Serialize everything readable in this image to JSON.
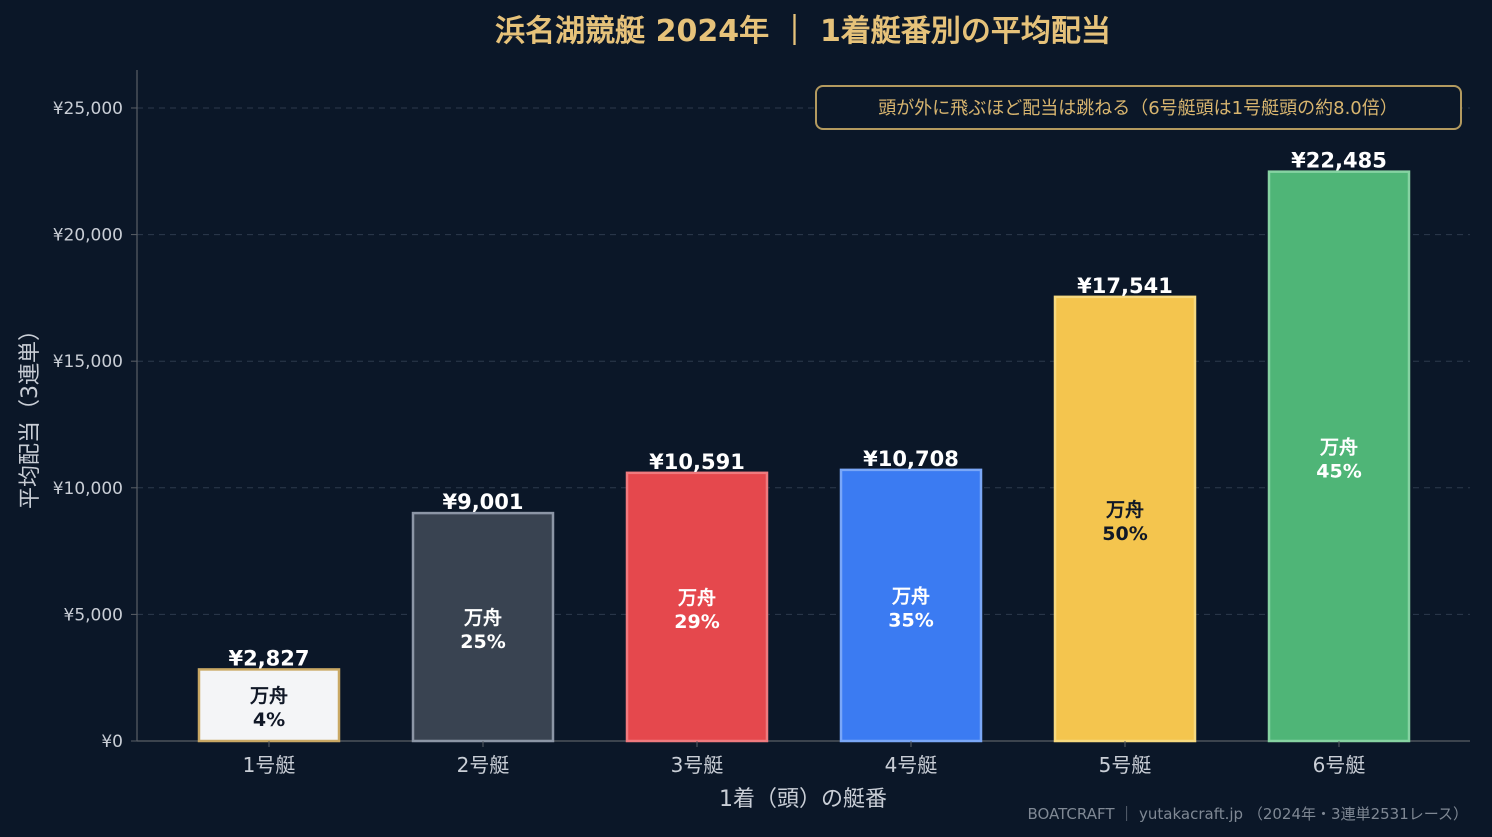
{
  "colors": {
    "background": "#0b1728",
    "title": "#e6c27a",
    "grid": "#2c3a4c",
    "axis": "#5a5f66",
    "tick_text": "#c9ced6",
    "bar_value_text": "#ffffff",
    "annotation_border": "#b39a5f",
    "annotation_text": "#d8b56f",
    "credit_text": "#7f8894"
  },
  "chart_data": {
    "type": "bar",
    "title": "浜名湖競艇 2024年 ｜ 1着艇番別の平均配当",
    "xlabel": "1着（頭）の艇番",
    "ylabel": "平均配当（3連単）",
    "ylim": [
      0,
      26500
    ],
    "yticks": [
      0,
      5000,
      10000,
      15000,
      20000,
      25000
    ],
    "ytick_labels": [
      "¥0",
      "¥5,000",
      "¥10,000",
      "¥15,000",
      "¥20,000",
      "¥25,000"
    ],
    "grid": true,
    "categories": [
      "1号艇",
      "2号艇",
      "3号艇",
      "4号艇",
      "5号艇",
      "6号艇"
    ],
    "values": [
      2827,
      9001,
      10591,
      10708,
      17541,
      22485
    ],
    "value_labels": [
      "¥2,827",
      "¥9,001",
      "¥10,591",
      "¥10,708",
      "¥17,541",
      "¥22,485"
    ],
    "inner_label_title": "万舟",
    "inner_labels": [
      "4%",
      "25%",
      "29%",
      "35%",
      "50%",
      "45%"
    ],
    "bar_colors": [
      "#f4f5f7",
      "#394351",
      "#e5484d",
      "#3b7bf2",
      "#f4c54e",
      "#4fb577"
    ],
    "bar_edge_colors": [
      "#c9a864",
      "#8c96a6",
      "#f07a7e",
      "#7aa7f7",
      "#f7d97e",
      "#86d3a2"
    ],
    "inner_text_colors": [
      "#111827",
      "#ffffff",
      "#ffffff",
      "#ffffff",
      "#111827",
      "#ffffff"
    ],
    "annotation": "頭が外に飛ぶほど配当は跳ねる（6号艇頭は1号艇頭の約8.0倍）",
    "annotation_position": "top-right",
    "credit": "BOATCRAFT ｜ yutakacraft.jp （2024年・3連単2531レース）"
  }
}
